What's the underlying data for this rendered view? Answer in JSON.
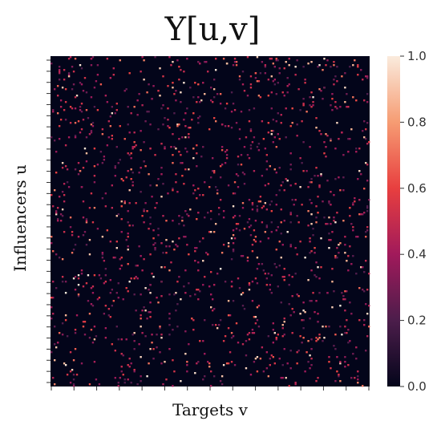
{
  "chart_data": {
    "type": "heatmap",
    "title": "Y[u,v]",
    "xlabel": "Targets v",
    "ylabel": "Influencers u",
    "colorbar": {
      "range": [
        0.0,
        1.0
      ],
      "ticks": [
        "0.0",
        "0.2",
        "0.4",
        "0.6",
        "0.8",
        "1.0"
      ],
      "colormap": "rocket",
      "colors": [
        "#03051a",
        "#4c1d4b",
        "#a11a5b",
        "#e83f3f",
        "#f69c73",
        "#faebdd"
      ]
    },
    "matrix_background_value": 0.0,
    "grid": false,
    "x_tick_labels_visible": false,
    "y_tick_labels_visible": false
  }
}
